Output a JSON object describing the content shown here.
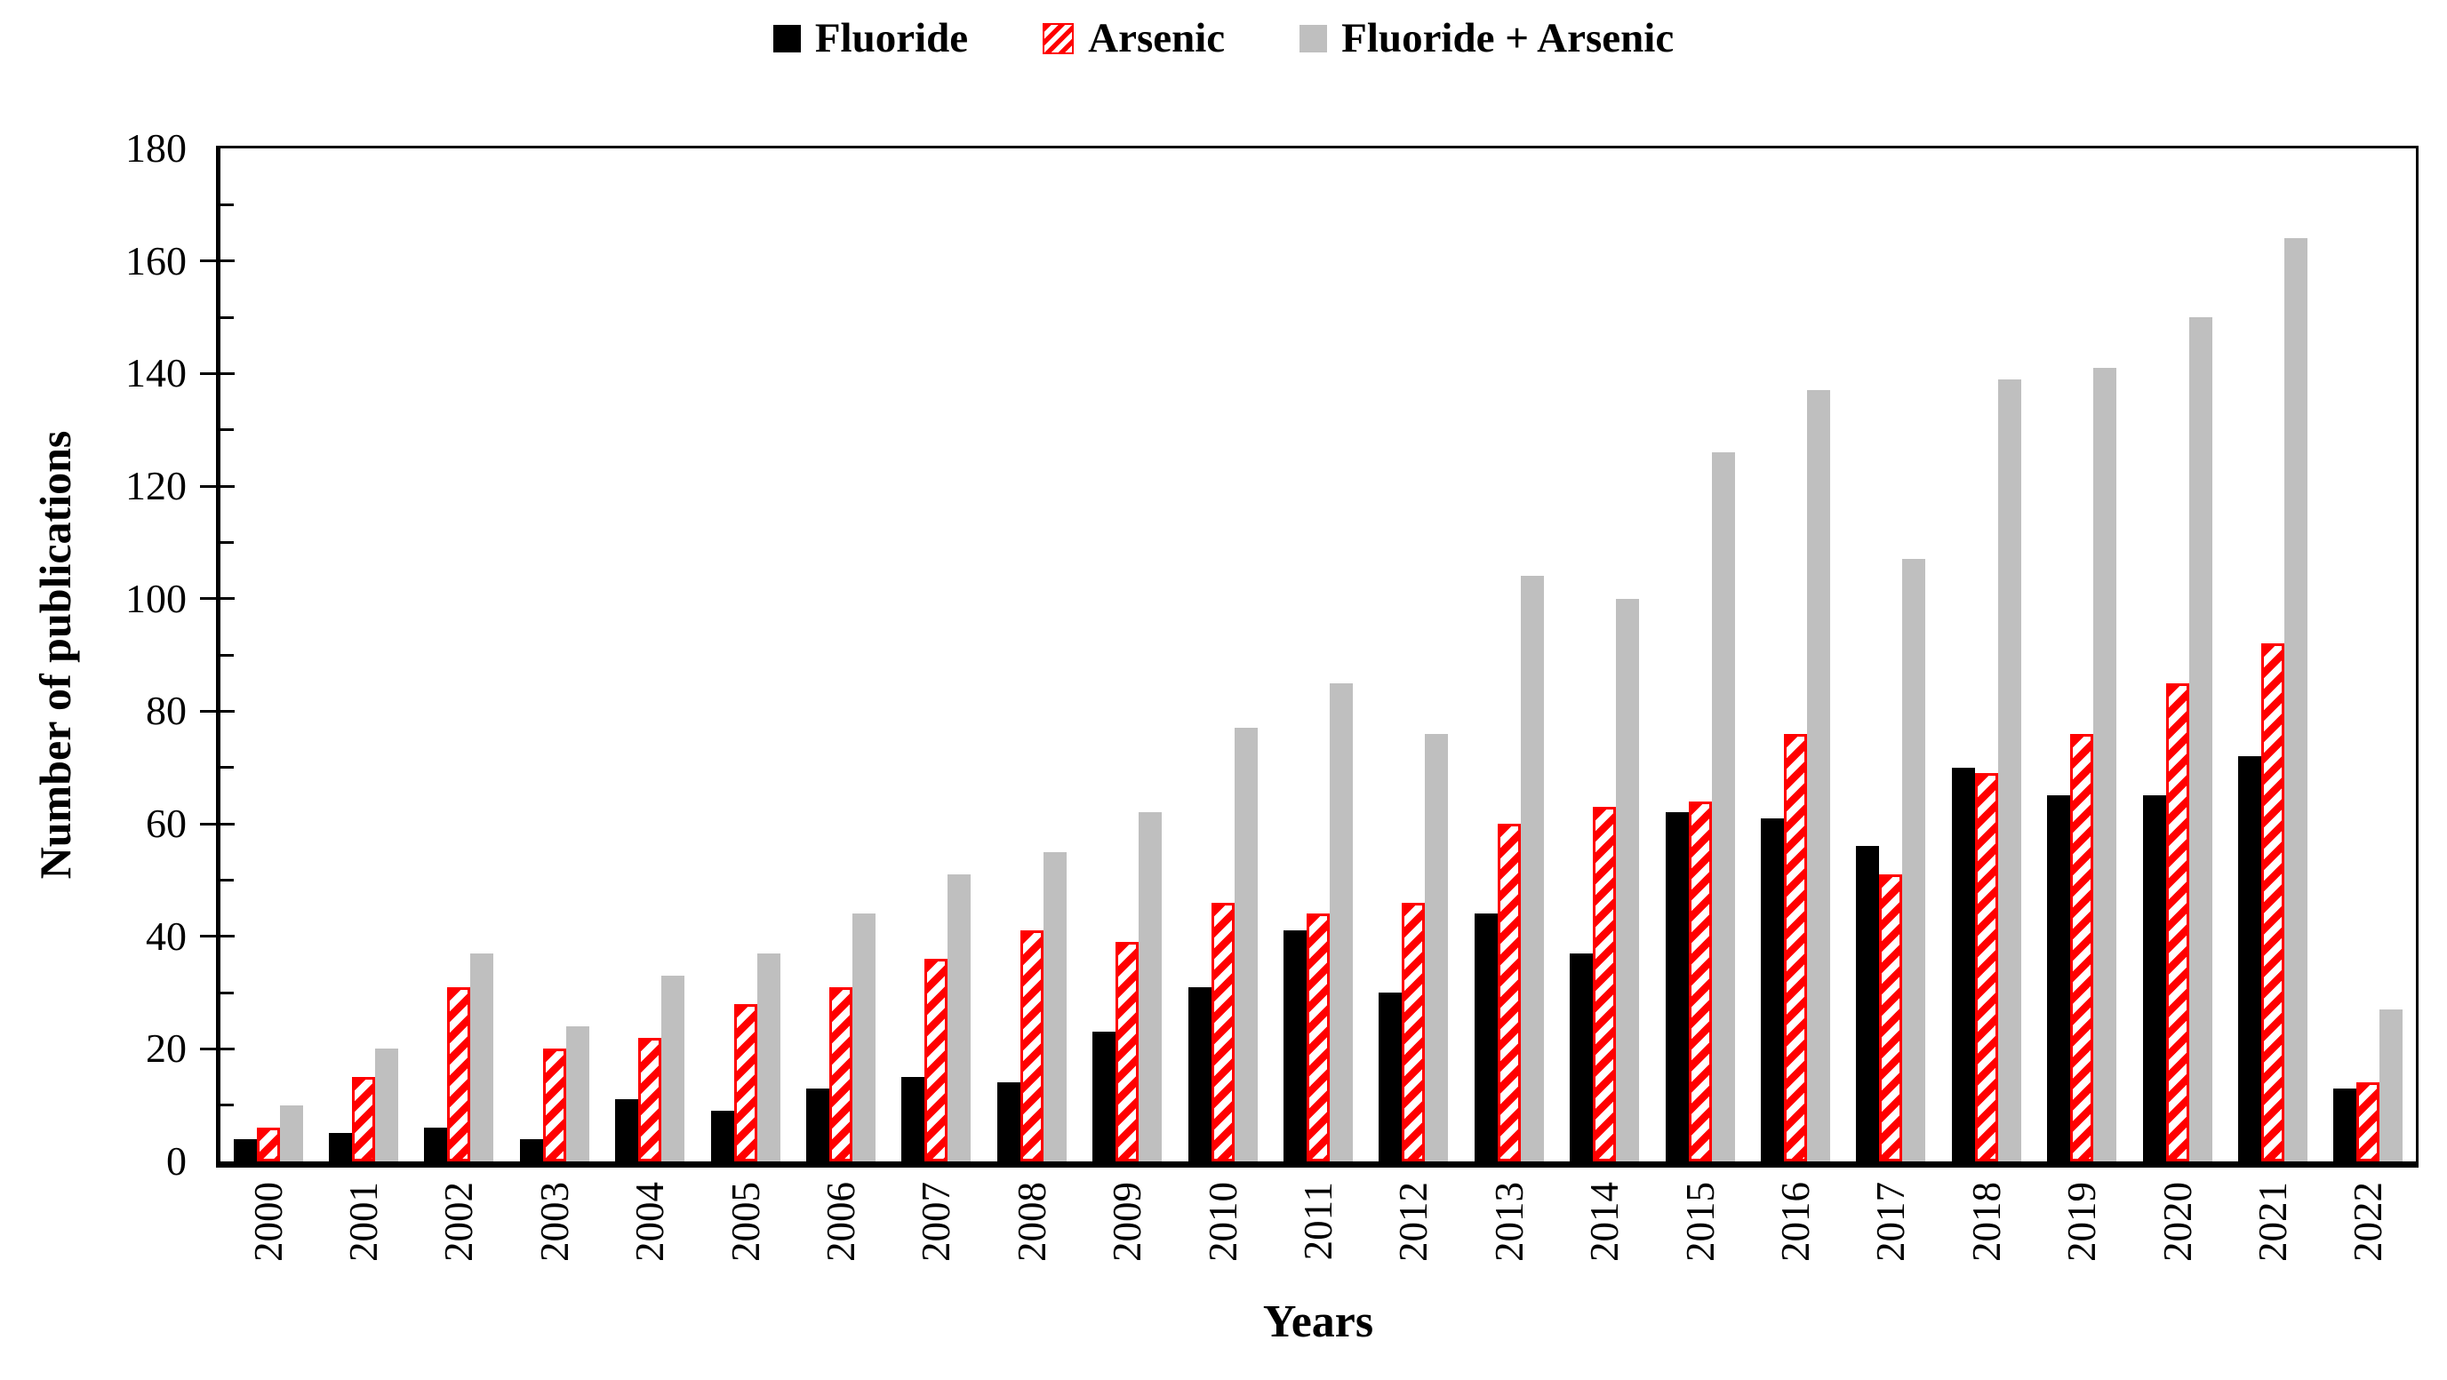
{
  "chart_data": {
    "type": "bar",
    "title": "",
    "xlabel": "Years",
    "ylabel": "Number of publications",
    "ylim": [
      0,
      180
    ],
    "ytick_step": 20,
    "minor_tick_step": 10,
    "grid": false,
    "legend_position": "top",
    "categories": [
      "2000",
      "2001",
      "2002",
      "2003",
      "2004",
      "2005",
      "2006",
      "2007",
      "2008",
      "2009",
      "2010",
      "2011",
      "2012",
      "2013",
      "2014",
      "2015",
      "2016",
      "2017",
      "2018",
      "2019",
      "2020",
      "2021",
      "2022"
    ],
    "series": [
      {
        "name": "Fluoride",
        "color": "#000000",
        "style": "solid",
        "values": [
          4,
          5,
          6,
          4,
          11,
          9,
          13,
          15,
          14,
          23,
          31,
          41,
          30,
          44,
          37,
          62,
          61,
          56,
          70,
          65,
          65,
          72,
          13
        ]
      },
      {
        "name": "Arsenic",
        "color": "#ff0000",
        "style": "hatched",
        "values": [
          6,
          15,
          31,
          20,
          22,
          28,
          31,
          36,
          41,
          39,
          46,
          44,
          46,
          60,
          63,
          64,
          76,
          51,
          69,
          76,
          85,
          92,
          14
        ]
      },
      {
        "name": "Fluoride + Arsenic",
        "color": "#bfbfbf",
        "style": "solid",
        "values": [
          10,
          20,
          37,
          24,
          33,
          37,
          44,
          51,
          55,
          62,
          77,
          85,
          76,
          104,
          100,
          126,
          137,
          107,
          139,
          141,
          150,
          164,
          27
        ]
      }
    ]
  },
  "colors": {
    "axis": "#000000",
    "background": "#ffffff",
    "fluoride": "#000000",
    "arsenic": "#ff0000",
    "fluoride_arsenic": "#bfbfbf"
  }
}
